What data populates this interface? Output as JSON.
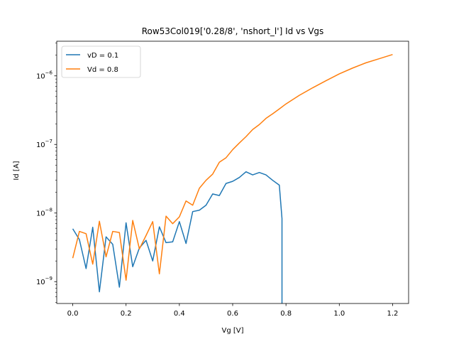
{
  "chart_data": {
    "type": "line",
    "title": "Row53Col019['0.28/8', 'nshort_l'] Id vs Vgs",
    "xlabel": "Vg [V]",
    "ylabel": "Id [A]",
    "xlim": [
      -0.06,
      1.26
    ],
    "ylim": [
      4.8e-10,
      3.2e-06
    ],
    "yscale": "log",
    "grid": false,
    "legend_position": "top-left",
    "x_ticks": [
      {
        "value": 0.0,
        "label": "0.0"
      },
      {
        "value": 0.2,
        "label": "0.2"
      },
      {
        "value": 0.4,
        "label": "0.4"
      },
      {
        "value": 0.6,
        "label": "0.6"
      },
      {
        "value": 0.8,
        "label": "0.8"
      },
      {
        "value": 1.0,
        "label": "1.0"
      },
      {
        "value": 1.2,
        "label": "1.2"
      }
    ],
    "y_ticks": [
      {
        "value": 1e-09,
        "base": "10",
        "exp": "−9"
      },
      {
        "value": 1e-08,
        "base": "10",
        "exp": "−8"
      },
      {
        "value": 1e-07,
        "base": "10",
        "exp": "−7"
      },
      {
        "value": 1e-06,
        "base": "10",
        "exp": "−6"
      }
    ],
    "series": [
      {
        "name": "vD = 0.1",
        "color": "#1f77b4",
        "x": [
          0.0,
          0.025,
          0.05,
          0.075,
          0.1,
          0.125,
          0.15,
          0.175,
          0.2,
          0.225,
          0.25,
          0.275,
          0.3,
          0.325,
          0.35,
          0.375,
          0.4,
          0.425,
          0.45,
          0.475,
          0.5,
          0.525,
          0.55,
          0.575,
          0.6,
          0.625,
          0.65,
          0.675,
          0.7,
          0.725,
          0.75,
          0.775,
          0.785,
          0.785
        ],
        "values": [
          5.9e-09,
          4.1e-09,
          1.55e-09,
          6.2e-09,
          7.1e-10,
          4.5e-09,
          3.5e-09,
          8.3e-10,
          7.2e-09,
          1.65e-09,
          3.1e-09,
          4e-09,
          2e-09,
          6.3e-09,
          3.7e-09,
          3.8e-09,
          7.5e-09,
          3.6e-09,
          1.05e-08,
          1.1e-08,
          1.3e-08,
          1.9e-08,
          1.8e-08,
          2.7e-08,
          2.9e-08,
          3.3e-08,
          4e-08,
          3.6e-08,
          3.9e-08,
          3.6e-08,
          3e-08,
          2.55e-08,
          8.3e-09,
          4.8e-10
        ]
      },
      {
        "name": "Vd = 0.8",
        "color": "#ff7f0e",
        "x": [
          0.0,
          0.025,
          0.05,
          0.075,
          0.1,
          0.125,
          0.15,
          0.175,
          0.2,
          0.225,
          0.25,
          0.275,
          0.3,
          0.325,
          0.35,
          0.375,
          0.4,
          0.425,
          0.45,
          0.475,
          0.5,
          0.525,
          0.55,
          0.575,
          0.6,
          0.625,
          0.65,
          0.675,
          0.7,
          0.725,
          0.75,
          0.775,
          0.8,
          0.85,
          0.9,
          0.95,
          1.0,
          1.05,
          1.1,
          1.15,
          1.2
        ],
        "values": [
          2.2e-09,
          5.4e-09,
          5e-09,
          1.8e-09,
          7.6e-09,
          2.3e-09,
          5.4e-09,
          5.2e-09,
          1.05e-09,
          7.8e-09,
          3e-09,
          4.7e-09,
          7.5e-09,
          1.3e-09,
          9e-09,
          7e-09,
          8.8e-09,
          1.5e-08,
          1.3e-08,
          2.3e-08,
          3e-08,
          3.7e-08,
          5.5e-08,
          6.4e-08,
          8.4e-08,
          1.05e-07,
          1.3e-07,
          1.65e-07,
          1.95e-07,
          2.4e-07,
          2.8e-07,
          3.3e-07,
          3.9e-07,
          5.2e-07,
          6.7e-07,
          8.5e-07,
          1.07e-06,
          1.3e-06,
          1.55e-06,
          1.78e-06,
          2.05e-06
        ]
      }
    ]
  }
}
